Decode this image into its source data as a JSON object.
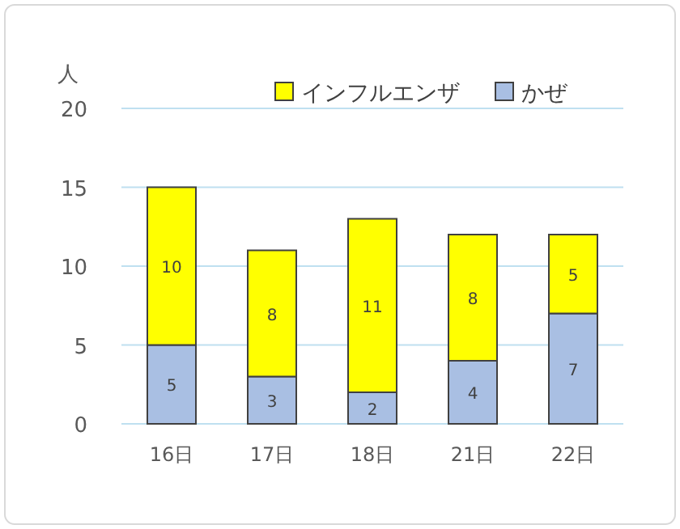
{
  "chart_data": {
    "type": "bar",
    "stacked": true,
    "ylabel": "人",
    "categories": [
      "16日",
      "17日",
      "18日",
      "21日",
      "22日"
    ],
    "series": [
      {
        "name": "かぜ",
        "color": "#a9bfe3",
        "values": [
          5,
          3,
          2,
          4,
          7
        ]
      },
      {
        "name": "インフルエンザ",
        "color": "#ffff00",
        "values": [
          10,
          8,
          11,
          8,
          5
        ]
      }
    ],
    "ylim": [
      0,
      20
    ],
    "yticks": [
      0,
      5,
      10,
      15,
      20
    ],
    "grid": "y",
    "legend": "top",
    "data_labels": true
  }
}
